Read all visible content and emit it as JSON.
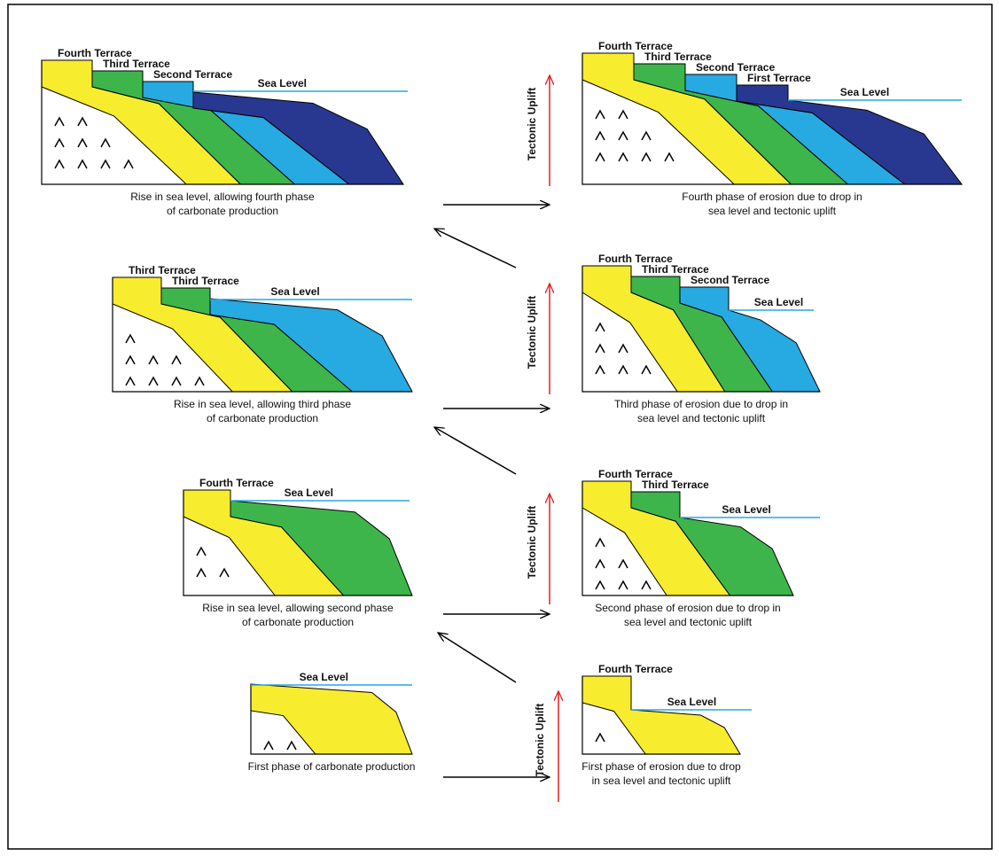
{
  "panels": [
    {
      "labels": [
        "Fourth Terrace",
        "Third Terrace",
        "Second Terrace",
        "Sea Level"
      ],
      "caption": [
        "Rise in sea level, allowing fourth phase",
        "of carbonate production"
      ]
    },
    {
      "labels": [
        "Third Terrace",
        "Third Terrace",
        "Sea Level"
      ],
      "caption": [
        "Rise in sea level, allowing third phase",
        "of carbonate production"
      ]
    },
    {
      "labels": [
        "Fourth Terrace",
        "Sea Level"
      ],
      "caption": [
        "Rise in sea level, allowing second phase",
        "of carbonate production"
      ]
    },
    {
      "labels": [
        "Sea Level"
      ],
      "caption": [
        "First phase of carbonate production"
      ]
    },
    {
      "labels": [
        "Fourth Terrace",
        "Third Terrace",
        "Second Terrace",
        "First Terrace",
        "Sea Level"
      ],
      "caption": [
        "Fourth phase of erosion due to drop in",
        "sea level and tectonic uplift"
      ]
    },
    {
      "labels": [
        "Fourth Terrace",
        "Third Terrace",
        "Second Terrace",
        "Sea Level"
      ],
      "caption": [
        "Third phase of erosion due to drop in",
        "sea level and tectonic uplift"
      ]
    },
    {
      "labels": [
        "Fourth Terrace",
        "Third Terrace",
        "Sea Level"
      ],
      "caption": [
        "Second phase of erosion due to drop in",
        "sea level and tectonic uplift"
      ]
    },
    {
      "labels": [
        "Fourth Terrace",
        "Sea Level"
      ],
      "caption": [
        "First phase of erosion due to drop",
        "in sea level and tectonic uplift"
      ]
    }
  ],
  "uplift_labels": [
    "Tectonic Uplift",
    "Tectonic Uplift",
    "Tectonic Uplift",
    "Tectonic Uplift"
  ]
}
